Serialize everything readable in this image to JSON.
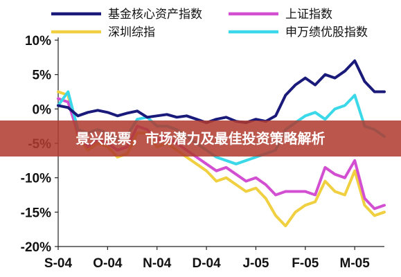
{
  "banner": {
    "text": "景兴股票，市场潜力及最佳投资策略解析",
    "color": "#b03a2e"
  },
  "chart_data": {
    "type": "line",
    "title": "",
    "xlabel": "",
    "ylabel": "",
    "ylim": [
      -20,
      10
    ],
    "yticks": [
      10,
      5,
      0,
      -5,
      -10,
      -15,
      -20
    ],
    "ytick_labels": [
      "10%",
      "5%",
      "0%",
      "-5%",
      "-10%",
      "-15%",
      "-20%"
    ],
    "xlim": [
      0,
      33
    ],
    "xticks": [
      0,
      5,
      10,
      15,
      20,
      25,
      30
    ],
    "xtick_labels": [
      "S-04",
      "O-04",
      "N-04",
      "D-04",
      "J-05",
      "F-05",
      "M-05"
    ],
    "grid": false,
    "legend_position": "top",
    "series": [
      {
        "name": "基金核心资产指数",
        "color": "#1a1a7a",
        "x": [
          0,
          1,
          2,
          3,
          4,
          5,
          6,
          7,
          8,
          9,
          10,
          11,
          12,
          13,
          14,
          15,
          16,
          17,
          18,
          19,
          20,
          21,
          22,
          23,
          24,
          25,
          26,
          27,
          28,
          29,
          30,
          31,
          32,
          33
        ],
        "values": [
          0.5,
          0.2,
          -1.0,
          -0.5,
          -0.2,
          -0.5,
          -1.0,
          -0.6,
          -0.3,
          -1.2,
          -1.0,
          -0.8,
          -1.2,
          -1.0,
          -1.5,
          -2.0,
          -1.5,
          -1.2,
          -1.8,
          -2.0,
          -1.5,
          -1.8,
          -1.0,
          2.0,
          3.5,
          4.5,
          3.5,
          5.0,
          4.5,
          5.5,
          7.0,
          4.0,
          2.5,
          2.5
        ]
      },
      {
        "name": "上证指数",
        "color": "#d24fd2",
        "x": [
          0,
          1,
          2,
          3,
          4,
          5,
          6,
          7,
          8,
          9,
          10,
          11,
          12,
          13,
          14,
          15,
          16,
          17,
          18,
          19,
          20,
          21,
          22,
          23,
          24,
          25,
          26,
          27,
          28,
          29,
          30,
          31,
          32,
          33
        ],
        "values": [
          1.5,
          1.0,
          -3.5,
          -5.5,
          -4.5,
          -5.0,
          -6.0,
          -5.5,
          -2.5,
          -3.0,
          -4.5,
          -4.0,
          -5.0,
          -6.0,
          -7.0,
          -8.0,
          -9.0,
          -8.5,
          -9.5,
          -10.5,
          -10.0,
          -11.0,
          -12.5,
          -12.0,
          -12.0,
          -12.0,
          -12.5,
          -8.5,
          -9.5,
          -10.0,
          -7.5,
          -13.0,
          -14.5,
          -14.0
        ]
      },
      {
        "name": "深圳综指",
        "color": "#f0d040",
        "x": [
          0,
          1,
          2,
          3,
          4,
          5,
          6,
          7,
          8,
          9,
          10,
          11,
          12,
          13,
          14,
          15,
          16,
          17,
          18,
          19,
          20,
          21,
          22,
          23,
          24,
          25,
          26,
          27,
          28,
          29,
          30,
          31,
          32,
          33
        ],
        "values": [
          2.5,
          2.0,
          -4.0,
          -6.0,
          -5.0,
          -5.5,
          -7.0,
          -6.5,
          -3.5,
          -3.5,
          -5.5,
          -5.0,
          -6.0,
          -7.0,
          -8.0,
          -9.0,
          -10.5,
          -10.0,
          -11.0,
          -12.0,
          -11.5,
          -13.0,
          -15.5,
          -17.0,
          -15.0,
          -14.0,
          -13.5,
          -10.5,
          -12.0,
          -12.5,
          -9.0,
          -14.0,
          -15.5,
          -15.0
        ]
      },
      {
        "name": "申万绩优股指数",
        "color": "#3ad8e8",
        "x": [
          0,
          1,
          2,
          3,
          4,
          5,
          6,
          7,
          8,
          9,
          10,
          11,
          12,
          13,
          14,
          15,
          16,
          17,
          18,
          19,
          20,
          21,
          22,
          23,
          24,
          25,
          26,
          27,
          28,
          29,
          30,
          31,
          32,
          33
        ],
        "values": [
          0.5,
          2.5,
          -3.0,
          -3.5,
          -3.0,
          -3.5,
          -4.5,
          -3.8,
          -1.5,
          -1.2,
          -2.5,
          -2.5,
          -3.0,
          -4.0,
          -5.0,
          -6.0,
          -7.0,
          -7.5,
          -8.0,
          -7.5,
          -7.0,
          -6.5,
          -6.0,
          -3.0,
          -2.0,
          -1.0,
          -0.5,
          -1.5,
          0.0,
          0.5,
          2.0,
          -2.5,
          -3.0,
          -4.0
        ]
      }
    ]
  }
}
